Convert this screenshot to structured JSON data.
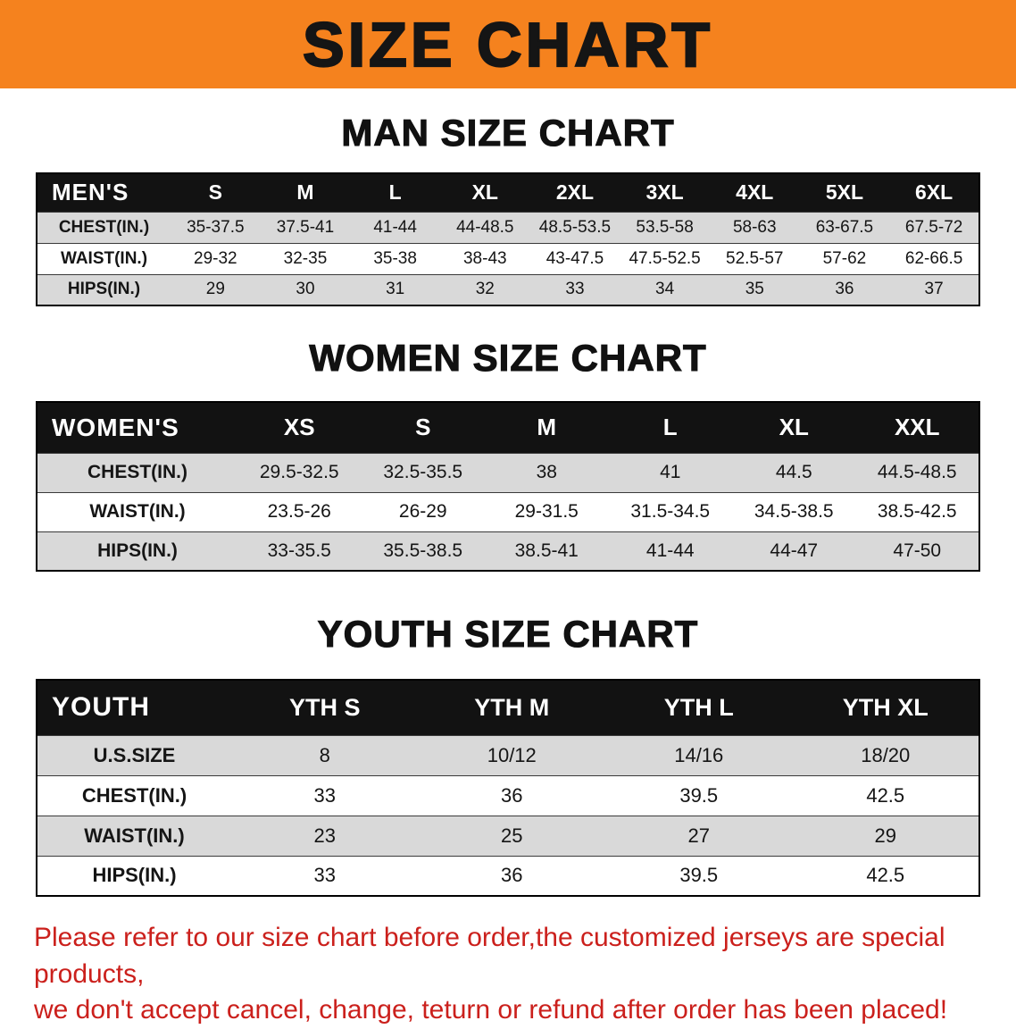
{
  "banner": {
    "title": "SIZE CHART",
    "bg_color": "#f5821e",
    "text_color": "#151515"
  },
  "sections": [
    {
      "heading": "MAN SIZE CHART",
      "table": {
        "header": [
          "MEN'S",
          "S",
          "M",
          "L",
          "XL",
          "2XL",
          "3XL",
          "4XL",
          "5XL",
          "6XL"
        ],
        "rows": [
          [
            "CHEST(IN.)",
            "35-37.5",
            "37.5-41",
            "41-44",
            "44-48.5",
            "48.5-53.5",
            "53.5-58",
            "58-63",
            "63-67.5",
            "67.5-72"
          ],
          [
            "WAIST(IN.)",
            "29-32",
            "32-35",
            "35-38",
            "38-43",
            "43-47.5",
            "47.5-52.5",
            "52.5-57",
            "57-62",
            "62-66.5"
          ],
          [
            "HIPS(IN.)",
            "29",
            "30",
            "31",
            "32",
            "33",
            "34",
            "35",
            "36",
            "37"
          ]
        ]
      }
    },
    {
      "heading": "WOMEN SIZE CHART",
      "table": {
        "header": [
          "WOMEN'S",
          "XS",
          "S",
          "M",
          "L",
          "XL",
          "XXL"
        ],
        "rows": [
          [
            "CHEST(IN.)",
            "29.5-32.5",
            "32.5-35.5",
            "38",
            "41",
            "44.5",
            "44.5-48.5"
          ],
          [
            "WAIST(IN.)",
            "23.5-26",
            "26-29",
            "29-31.5",
            "31.5-34.5",
            "34.5-38.5",
            "38.5-42.5"
          ],
          [
            "HIPS(IN.)",
            "33-35.5",
            "35.5-38.5",
            "38.5-41",
            "41-44",
            "44-47",
            "47-50"
          ]
        ]
      }
    },
    {
      "heading": "YOUTH SIZE CHART",
      "table": {
        "header": [
          "YOUTH",
          "YTH S",
          "YTH M",
          "YTH L",
          "YTH XL"
        ],
        "rows": [
          [
            "U.S.SIZE",
            "8",
            "10/12",
            "14/16",
            "18/20"
          ],
          [
            "CHEST(IN.)",
            "33",
            "36",
            "39.5",
            "42.5"
          ],
          [
            "WAIST(IN.)",
            "23",
            "25",
            "27",
            "29"
          ],
          [
            "HIPS(IN.)",
            "33",
            "36",
            "39.5",
            "42.5"
          ]
        ]
      }
    }
  ],
  "notice": {
    "line1": "Please refer to our size chart before order,the customized jerseys are special products,",
    "line2": "we don't accept cancel, change, teturn or refund after order has been placed!",
    "text_color": "#cb201c"
  },
  "colors": {
    "banner_bg": "#f5821e",
    "table_header_bg": "#121212",
    "table_header_text": "#ffffff",
    "row_stripe": "#d9d9d9",
    "table_border": "#000000"
  }
}
